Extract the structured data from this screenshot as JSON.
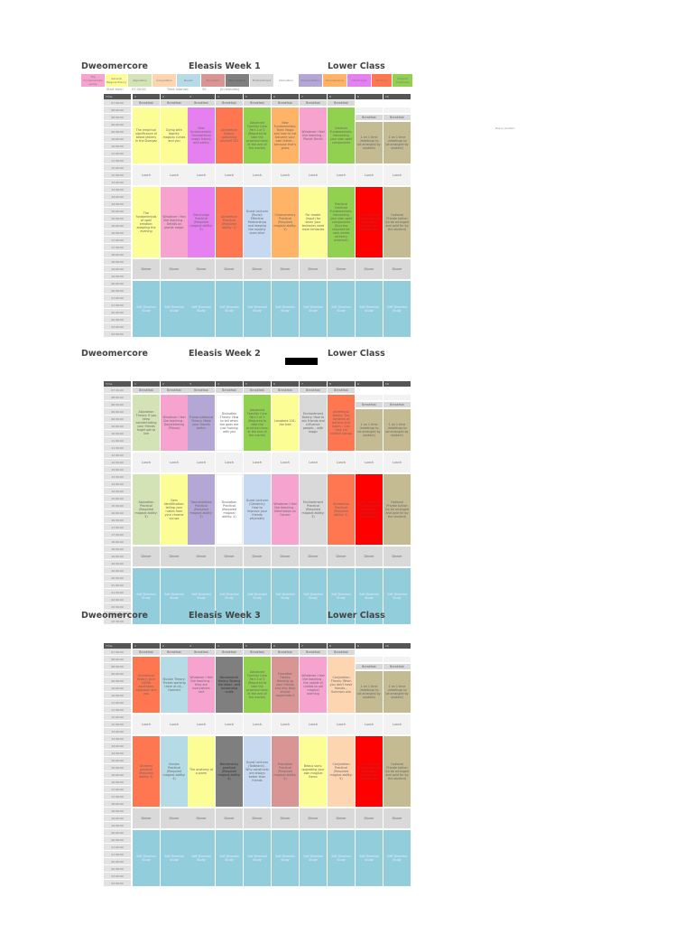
{
  "document": {
    "app_title": "Dweomercore",
    "class": "Lower Class",
    "side_note": "this is random",
    "start_time_label": "Start time:",
    "start_time": "07:30:00",
    "interval_label": "Time interval:",
    "interval": "30",
    "interval_unit": "(in minutes)",
    "time_header": "Time"
  },
  "legend": [
    {
      "label": "The Fundamentals series",
      "color": "#f7a3d0"
    },
    {
      "label": "General Magical theory",
      "color": "#fdfd96"
    },
    {
      "label": "Abjuration",
      "color": "#d4e3b5"
    },
    {
      "label": "Conjuration",
      "color": "#fdd5b1"
    },
    {
      "label": "Illusion",
      "color": "#b5dbe6"
    },
    {
      "label": "Evocation",
      "color": "#d99594"
    },
    {
      "label": "Necromancy",
      "color": "#7f7f7f"
    },
    {
      "label": "Enchantment",
      "color": "#d9d9d9"
    },
    {
      "label": "Divination",
      "color": "#ffffff"
    },
    {
      "label": "Transmutation",
      "color": "#b4a7d6"
    },
    {
      "label": "Chronomancy",
      "color": "#ffb366"
    },
    {
      "label": "Starcharge",
      "color": "#e67ff0"
    },
    {
      "label": "Alchemy",
      "color": "#ff7751"
    },
    {
      "label": "Magical Creatures",
      "color": "#92d050"
    }
  ],
  "times": [
    "07:30:00",
    "08:00:00",
    "08:30:00",
    "09:00:00",
    "09:30:00",
    "10:00:00",
    "10:30:00",
    "11:00:00",
    "11:30:00",
    "12:00:00",
    "12:30:00",
    "13:00:00",
    "13:30:00",
    "14:00:00",
    "14:30:00",
    "15:00:00",
    "15:30:00",
    "16:00:00",
    "16:30:00",
    "17:00:00",
    "17:30:00",
    "18:00:00",
    "18:30:00",
    "19:00:00",
    "19:30:00",
    "20:00:00",
    "20:30:00",
    "21:00:00",
    "21:30:00",
    "22:00:00",
    "22:30:00",
    "23:00:00",
    "23:30:00"
  ],
  "days": [
    "1",
    "2",
    "3",
    "4",
    "5",
    "6",
    "7",
    "8",
    "9",
    "10"
  ],
  "common": {
    "breakfast": "Breakfast",
    "lunch": "Lunch",
    "dinner": "Dinner",
    "study": "Self Directed Study"
  },
  "weeks": [
    {
      "title": "Eleasis Week 1",
      "morning": [
        {
          "text": "The empirical significance of beard jewlery in the Duergar",
          "color": "#fdfd96"
        },
        {
          "text": "Dying with dignity: magical curses and you",
          "color": "#fdfd96"
        },
        {
          "text": "New fundamentals: Gravitational magic theory and safety",
          "color": "#e67ff0"
        },
        {
          "text": "Alchemical theory: poisoning yourself 101",
          "color": "#ff7751"
        },
        {
          "text": "Advanced Familiar Care Part 1 of 3 (Required to take the practical class at the end of the month)",
          "color": "#92d050"
        },
        {
          "text": "New Fundamentals: Tamn Magic and how to not become your own father... because that's gross",
          "color": "#ffb366"
        },
        {
          "text": "Whatever I feel like teaching - Planet Devils",
          "color": "#f7a3d0"
        },
        {
          "text": "Creature Fundamentals: Harvesting your own spell components",
          "color": "#92d050"
        },
        {
          "text": "1 on 1 time (meetings to be arranged by student)",
          "color": "#c4bb93"
        },
        {
          "text": "1 on 1 time (meetings to be arranged by student)",
          "color": "#c4bb93"
        }
      ],
      "afternoon": [
        {
          "text": "The fundamentals of spell creation: adapting the evening",
          "color": "#fdfd96"
        },
        {
          "text": "Whatever I feel like teaching - Details on planet magic",
          "color": "#f7a3d0"
        },
        {
          "text": "Starcharge Practical (Required magical ability: 3)",
          "color": "#e67ff0"
        },
        {
          "text": "Alchemical Practical (Required ability: 1)",
          "color": "#ff7751"
        },
        {
          "text": "Guest Lecturer (Rune): Effective Partnerships and keeping the squishy ones alive",
          "color": "#c6d9f1"
        },
        {
          "text": "Chronomancy Practical (Required magical ability: 5)",
          "color": "#ffb366"
        },
        {
          "text": "For reader (input) for when your tentacles need more tentacles",
          "color": "#fdfd96"
        },
        {
          "text": "Practical Creature Fundamentals: Harvesting your own spell components (Success required for next weeks alchemy practical)",
          "color": "#92d050"
        },
        {
          "text": "1 on 1 Dueling (Please arrange a location through the headmaster)",
          "color": "#ff0000"
        },
        {
          "text": "Optional Private tuition (to be arranged and paid for by the student)",
          "color": "#c4bb93"
        }
      ]
    },
    {
      "title": "Eleasis Week 2",
      "morning": [
        {
          "text": "Abjuration Theory: If you keep concentrating your friends might get to live",
          "color": "#d4e3b5"
        },
        {
          "text": "Whatever I feel like teaching - Daydreaming (Planar)",
          "color": "#f7a3d0"
        },
        {
          "text": "Transmutational Theory: Make your friends better",
          "color": "#b4a7d6"
        },
        {
          "text": "Divination Theory: How to tell when the gods are just fucking with you",
          "color": "#ffffff"
        },
        {
          "text": "Advanced Familiar Care Part 2 of 3 (Required to take the practical class at the end of the month)",
          "color": "#92d050"
        },
        {
          "text": "Lanabore 101: the tree",
          "color": "#fdfd96"
        },
        {
          "text": "Enchantment theory: How to win friends and influence people... with magic",
          "color": "#d9d9d9"
        },
        {
          "text": "Alchemical theory: The contents of potions and toxins - Can they kill eldritch beings",
          "color": "#ff7751"
        },
        {
          "text": "1 on 1 time (meetings to be arranged by student)",
          "color": "#c4bb93"
        },
        {
          "text": "1 on 1 time (meetings to be arranged by student)",
          "color": "#c4bb93"
        }
      ],
      "afternoon": [
        {
          "text": "Abjuration Practical (Required magical ability: 3)",
          "color": "#d4e3b5"
        },
        {
          "text": "Gem identification: telling your rubies from your chrome syrups",
          "color": "#fdfd96"
        },
        {
          "text": "Transmutation Practical (Required magical ability: 3)",
          "color": "#b4a7d6"
        },
        {
          "text": "Divination Practical (Required magical ability: 4)",
          "color": "#ffffff"
        },
        {
          "text": "Guest Lecturer (Geriatric): How to improve your friends physically",
          "color": "#c6d9f1"
        },
        {
          "text": "Whatever I feel like teaching - Information on Cancer",
          "color": "#f7a3d0"
        },
        {
          "text": "Enchantment Practical (Required magical ability: 3)",
          "color": "#d9d9d9"
        },
        {
          "text": "Alchemical Practical (Required ability: 2)",
          "color": "#ff7751"
        },
        {
          "text": "1 on 1 Dueling (Please arrange a location through the headmaster)",
          "color": "#ff0000"
        },
        {
          "text": "Optional Private tuition (to be arranged and paid for by the student)",
          "color": "#c4bb93"
        }
      ]
    },
    {
      "title": "Eleasis Week 3",
      "morning": [
        {
          "text": "Alchemical theory: your 16/5th ascendant explosion and you",
          "color": "#ff7751"
        },
        {
          "text": "Illusion Theory: Threes working there at all... Harmed",
          "color": "#b5dbe6"
        },
        {
          "text": "Whatever I feel like teaching - they are everywhere rant",
          "color": "#f7a3d0"
        },
        {
          "text": "Necromantic theory: Raising the dead - and consensing undie",
          "color": "#7f7f7f"
        },
        {
          "text": "Advanced Familiar Care Part 3 of 3 (Required to take the practical class at the end of the month)",
          "color": "#92d050"
        },
        {
          "text": "Evocation Theory: Blowing up your friends and why they should appreciate it",
          "color": "#d99594"
        },
        {
          "text": "Whatever I feel like teaching - the upside of riddles to aid magical learning",
          "color": "#f7a3d0"
        },
        {
          "text": "Conjuration Theory: When you don't have friends... Summon one",
          "color": "#fdd5b1"
        },
        {
          "text": "1 on 1 time (meetings to be arranged by student)",
          "color": "#c4bb93"
        },
        {
          "text": "1 on 1 time (meetings to be arranged by student)",
          "color": "#c4bb93"
        }
      ],
      "afternoon": [
        {
          "text": "Alchemy practical (Required ability: 3)",
          "color": "#ff7751"
        },
        {
          "text": "Illusion Practical (Required magical ability: 4)",
          "color": "#b5dbe6"
        },
        {
          "text": "The anatomy of a worm",
          "color": "#fdfd96"
        },
        {
          "text": "Necromancy practical (Required magical ability: 4)",
          "color": "#7f7f7f"
        },
        {
          "text": "Guest Lecturer (Todbrand) - Why constructs are always better than friends",
          "color": "#c6d9f1"
        },
        {
          "text": "Evocation Practical (Required magical ability: 5)",
          "color": "#d99594"
        },
        {
          "text": "Beaux sons: upgrading your own magical items",
          "color": "#fdfd96"
        },
        {
          "text": "Conjuration Practical (Required magical ability: 5)",
          "color": "#fdd5b1"
        },
        {
          "text": "1 on 1 Dueling (Please arrange a location through the headmaster)",
          "color": "#ff0000"
        },
        {
          "text": "Optional Private tuition (to be arranged and paid for by the student)",
          "color": "#c4bb93"
        }
      ]
    }
  ]
}
